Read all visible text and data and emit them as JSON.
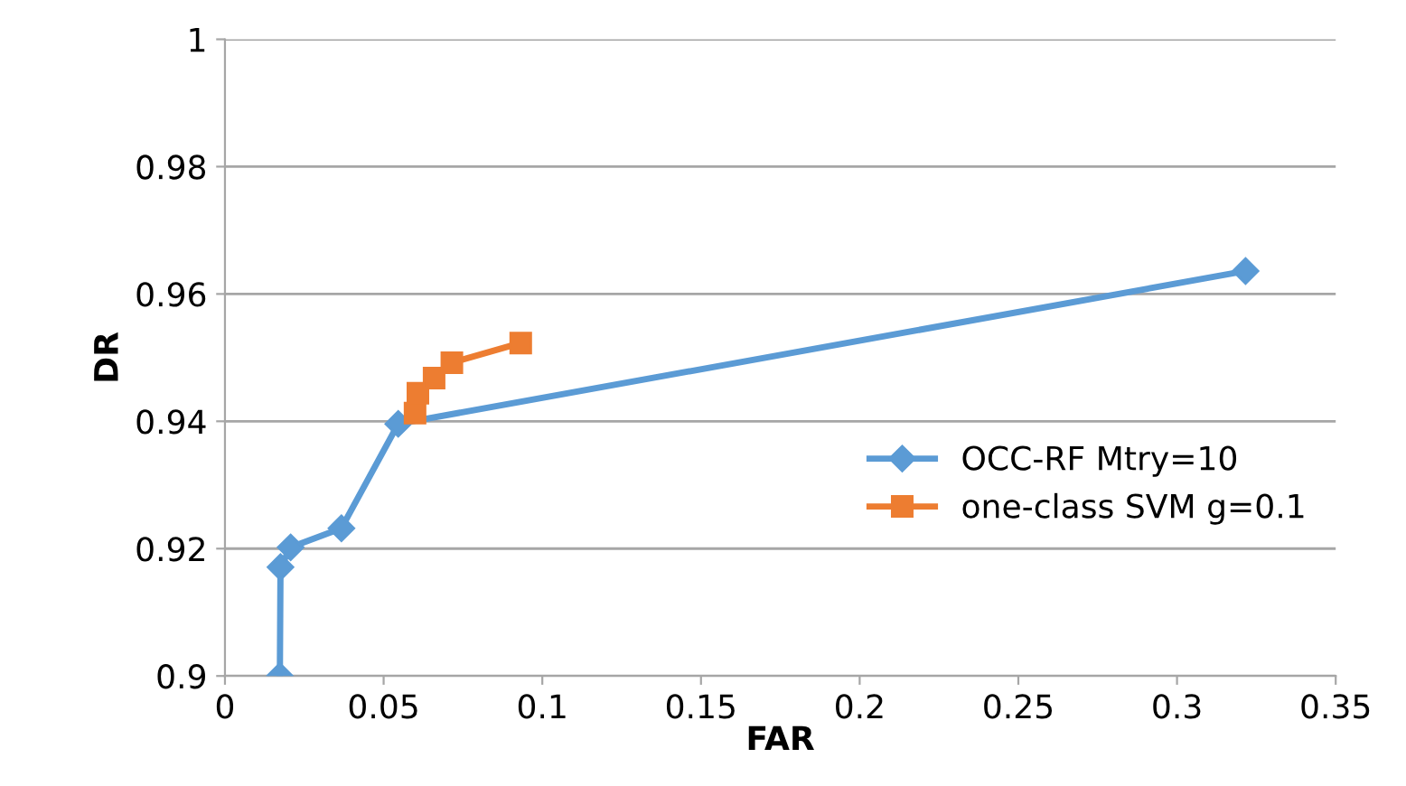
{
  "chart_data": {
    "type": "line",
    "xlabel": "FAR",
    "ylabel": "DR",
    "xlim": [
      0,
      0.35
    ],
    "xticks": [
      0,
      0.05,
      0.1,
      0.15,
      0.2,
      0.25,
      0.3,
      0.35
    ],
    "ylim": [
      0.9,
      1
    ],
    "yticks": [
      0.9,
      0.92,
      0.94,
      0.96,
      0.98,
      1
    ],
    "grid": "y",
    "legend": "right",
    "series": [
      {
        "name": "OCC-RF Mtry=10",
        "color": "#5b9bd5",
        "marker": "diamond",
        "x": [
          0.0173,
          0.0175,
          0.0207,
          0.0367,
          0.0546,
          0.3216
        ],
        "values": [
          0.9,
          0.9171,
          0.9202,
          0.9232,
          0.9396,
          0.9636
        ]
      },
      {
        "name": "one-class SVM g=0.1",
        "color": "#ed7d31",
        "marker": "square",
        "x": [
          0.0599,
          0.0608,
          0.0659,
          0.0715,
          0.0932
        ],
        "values": [
          0.9413,
          0.9444,
          0.9468,
          0.9492,
          0.9523
        ]
      }
    ]
  }
}
